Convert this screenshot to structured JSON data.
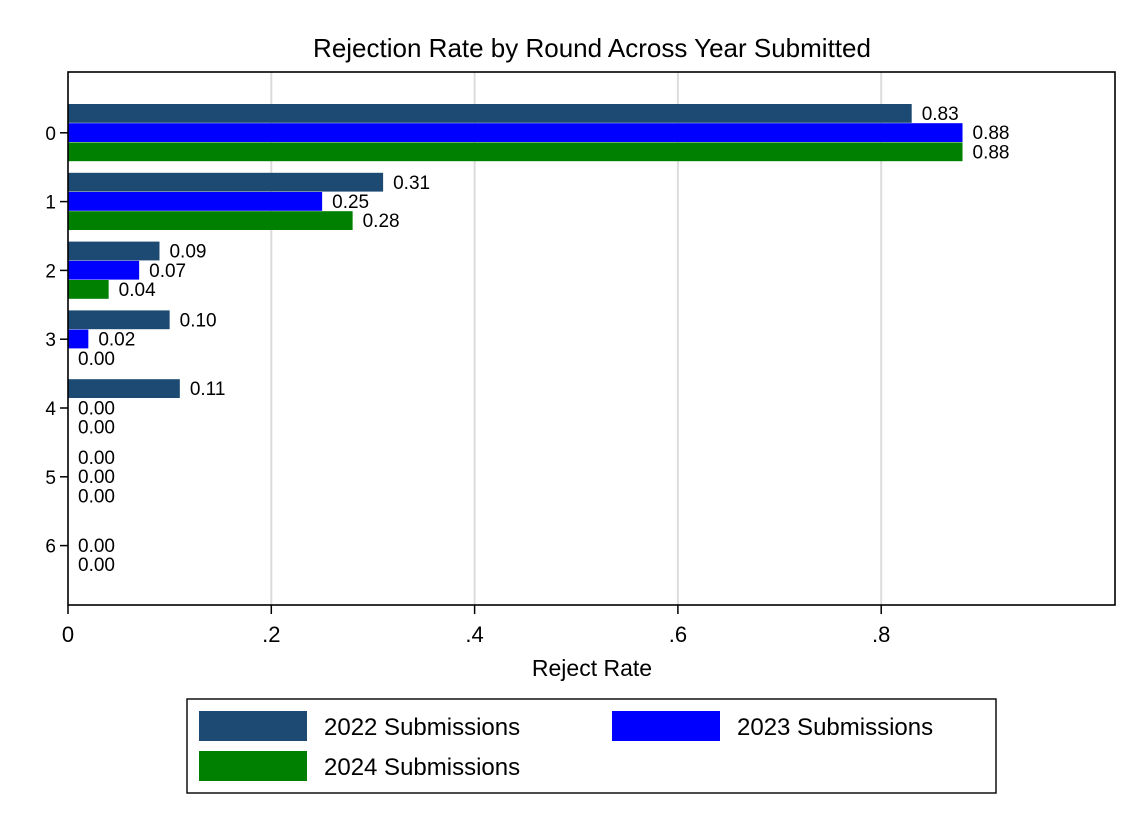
{
  "chart_data": {
    "type": "bar",
    "orientation": "horizontal",
    "title": "Rejection Rate by Round Across Year Submitted",
    "xlabel": "Reject Rate",
    "ylabel": "",
    "categories": [
      "0",
      "1",
      "2",
      "3",
      "4",
      "5",
      "6"
    ],
    "xlim": [
      0,
      1.03
    ],
    "xticks": [
      0,
      0.2,
      0.4,
      0.6,
      0.8
    ],
    "xtick_labels": [
      "0",
      ".2",
      ".4",
      ".6",
      ".8"
    ],
    "grid": true,
    "legend_position": "bottom",
    "series": [
      {
        "name": "2022 Submissions",
        "color": "#1c4a72",
        "values": [
          0.83,
          0.31,
          0.09,
          0.1,
          0.11,
          0.0,
          null
        ],
        "labels": [
          "0.83",
          "0.31",
          "0.09",
          "0.10",
          "0.11",
          "0.00",
          null
        ]
      },
      {
        "name": "2023 Submissions",
        "color": "#0000ff",
        "values": [
          0.88,
          0.25,
          0.07,
          0.02,
          0.0,
          0.0,
          0.0
        ],
        "labels": [
          "0.88",
          "0.25",
          "0.07",
          "0.02",
          "0.00",
          "0.00",
          "0.00"
        ]
      },
      {
        "name": "2024 Submissions",
        "color": "#008000",
        "values": [
          0.88,
          0.28,
          0.04,
          0.0,
          0.0,
          0.0,
          0.0
        ],
        "labels": [
          "0.88",
          "0.28",
          "0.04",
          "0.00",
          "0.00",
          "0.00",
          "0.00"
        ]
      }
    ]
  }
}
